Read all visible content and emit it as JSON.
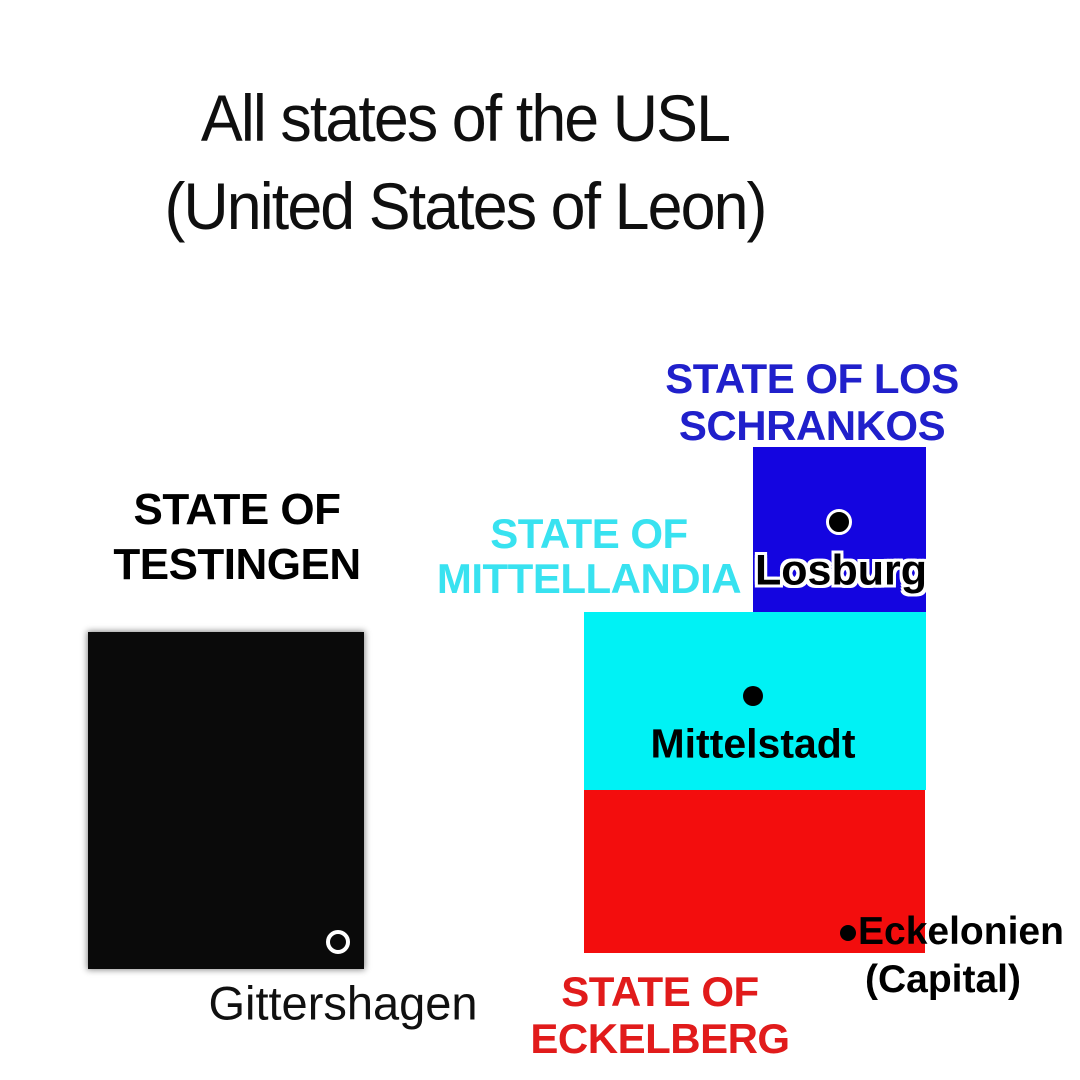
{
  "title": {
    "line1": "All states of the USL",
    "line2": "(United States of Leon)"
  },
  "map": {
    "testingen": {
      "name_line1": "STATE OF",
      "name_line2": "TESTINGEN",
      "fill": "#0a0a0a",
      "label_color": "#000000",
      "city": {
        "name": "Gittershagen",
        "marker": "white-ring-circle"
      }
    },
    "los_schrankos": {
      "name_line1": "STATE OF LOS",
      "name_line2": "SCHRANKOS",
      "fill": "#1405e0",
      "label_color": "#2020cb",
      "city": {
        "name": "Losburg",
        "marker": "black-dot-white-ring"
      }
    },
    "mittellandia": {
      "name_line1": "STATE OF",
      "name_line2": "MITTELLANDIA",
      "fill": "#00f2f5",
      "label_color": "#38e2f0",
      "city": {
        "name": "Mittelstadt",
        "marker": "black-dot"
      }
    },
    "eckelberg": {
      "name_line1": "STATE OF",
      "name_line2": "ECKELBERG",
      "fill": "#f30d0d",
      "label_color": "#e11b1b",
      "city": {
        "name": "Eckelonien",
        "note": "(Capital)",
        "marker": "black-dot"
      }
    }
  }
}
